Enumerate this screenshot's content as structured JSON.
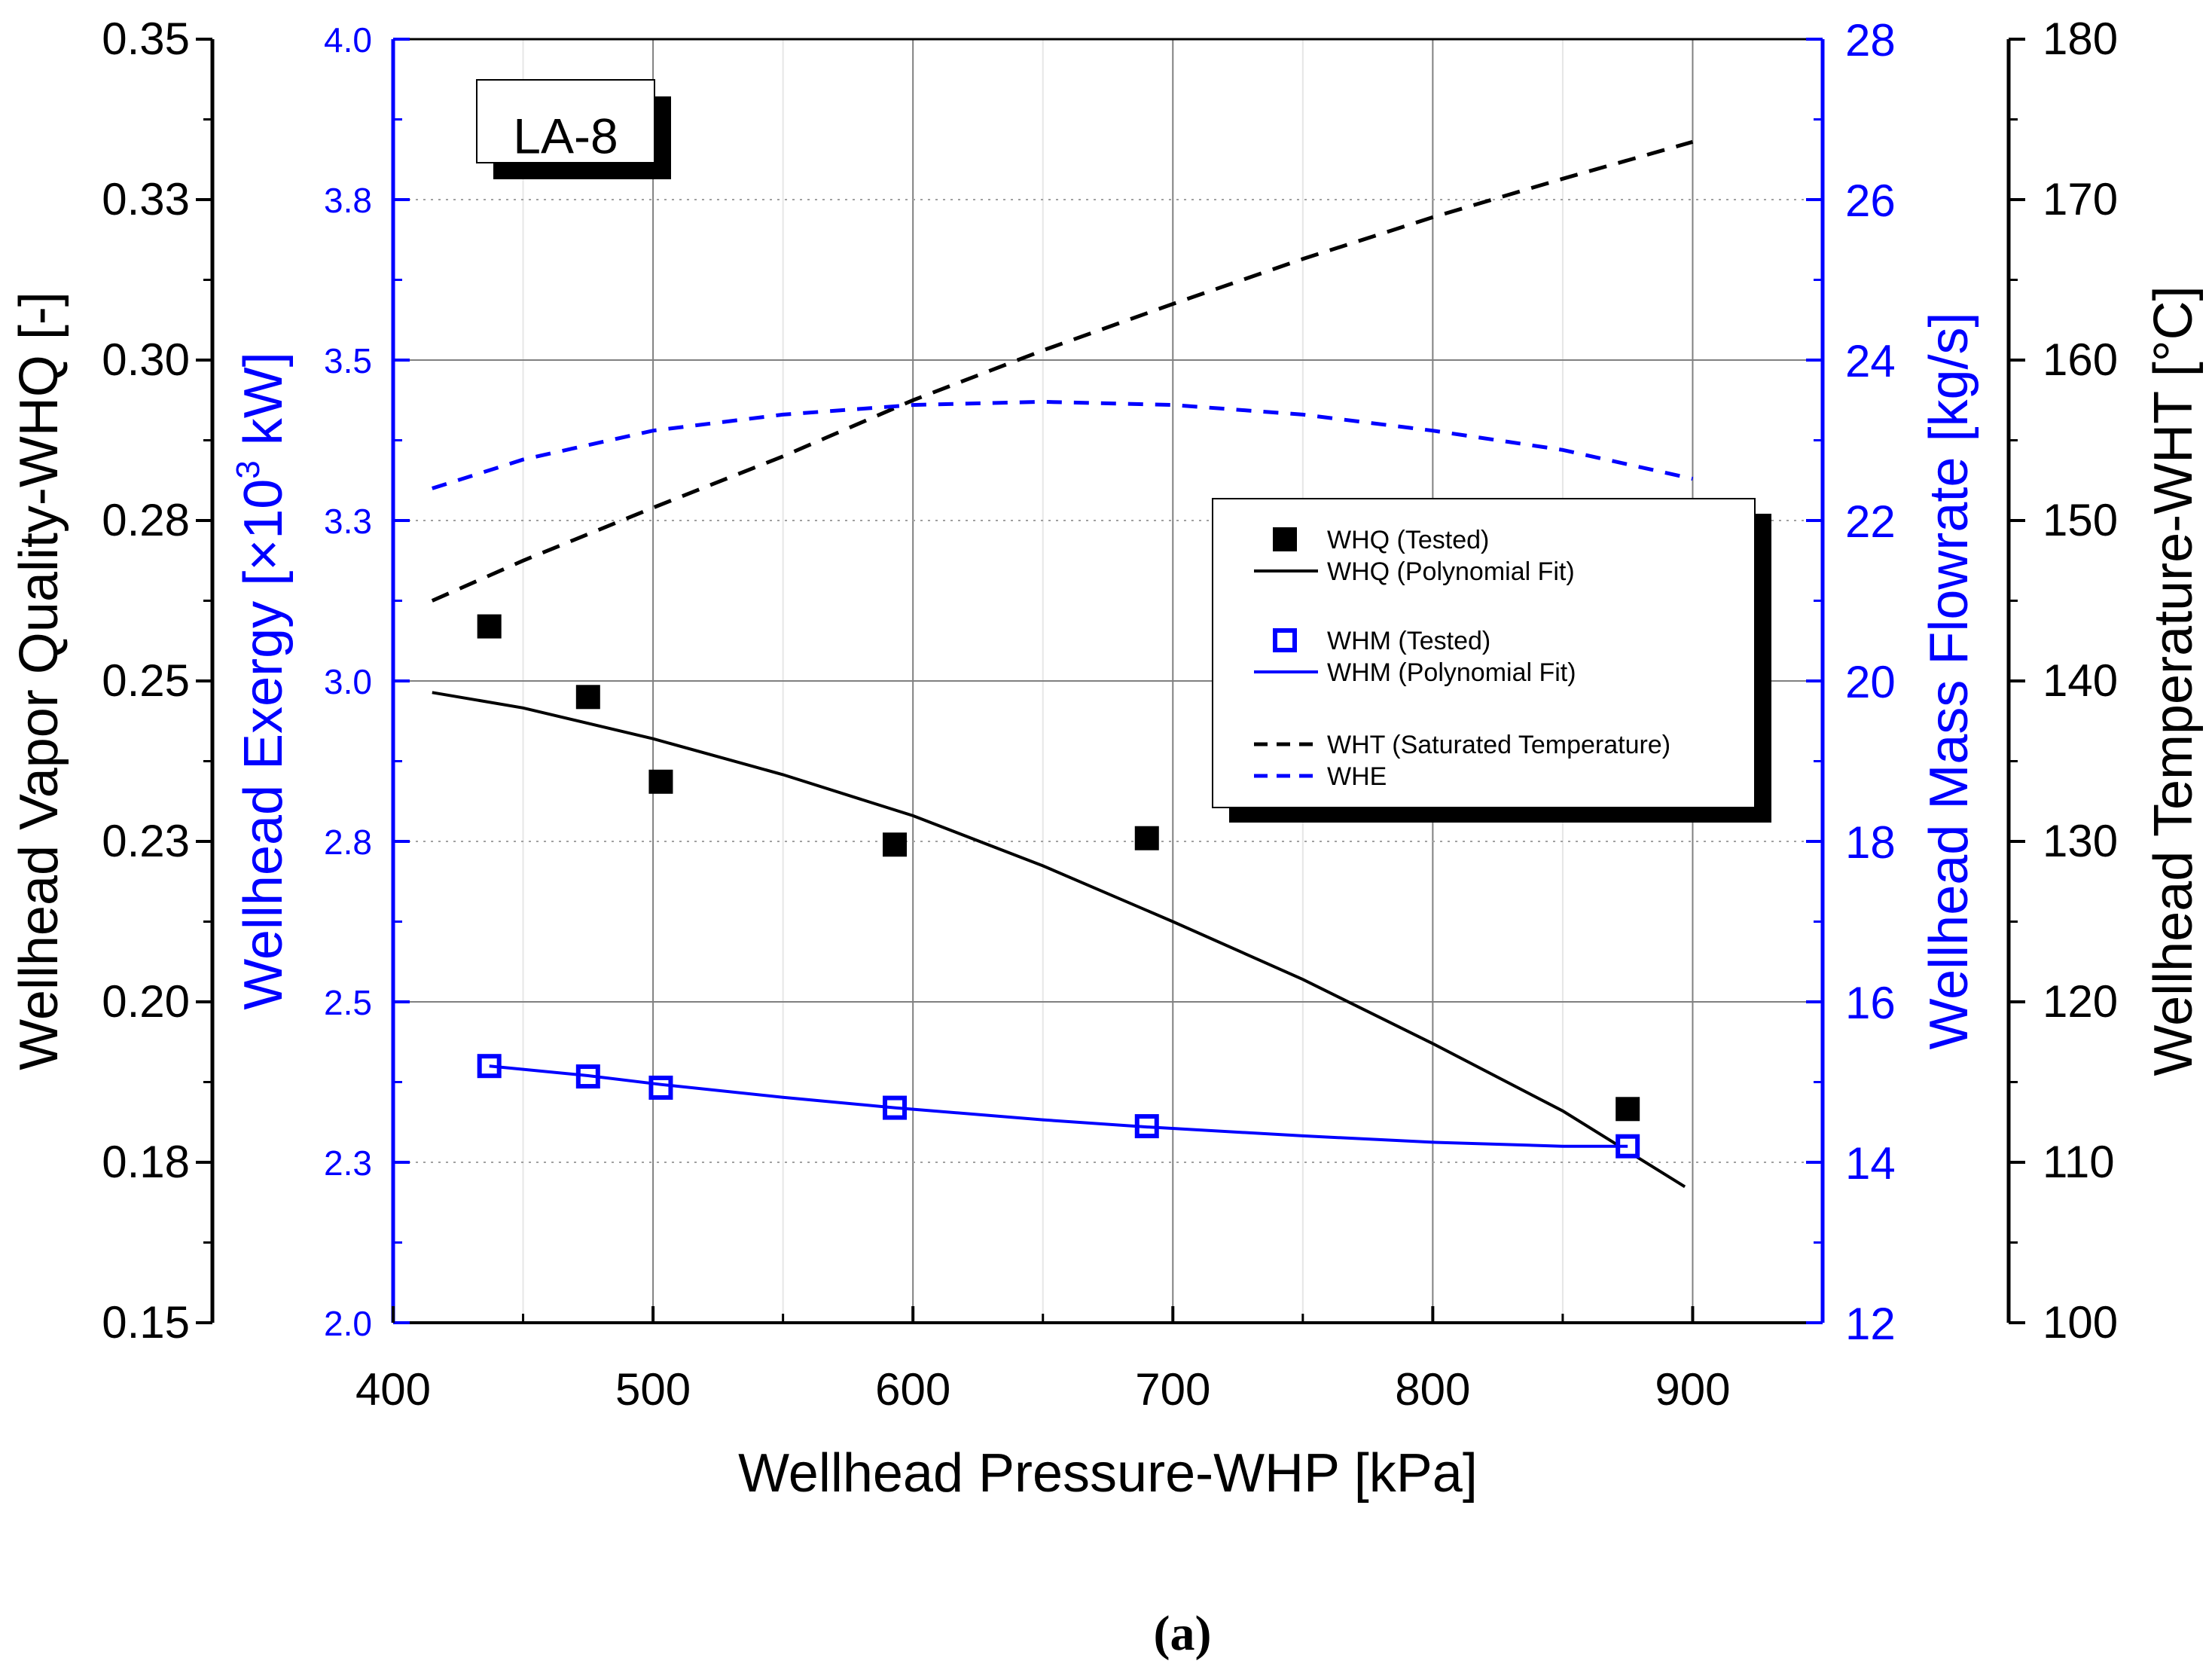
{
  "chart_data": {
    "type": "scatter",
    "plot_label": "LA-8",
    "figure_caption": "(a)",
    "xlabel": "Wellhead Pressure-WHP [kPa]",
    "xlim": [
      400,
      950
    ],
    "xticks": [
      400,
      500,
      600,
      700,
      800,
      900
    ],
    "axes": {
      "left": {
        "label": "Wellhead Vapor Quality-WHQ [-]",
        "ylim": [
          0.15,
          0.35
        ],
        "ticks": [
          0.15,
          0.175,
          0.2,
          0.225,
          0.25,
          0.275,
          0.3,
          0.325,
          0.35
        ],
        "tick_labels": [
          "0.15",
          "0.18",
          "0.20",
          "0.23",
          "0.25",
          "0.28",
          "0.30",
          "0.33",
          "0.35"
        ],
        "color": "#000000"
      },
      "left_inner": {
        "label_main": "Wellhead Exergy [×10",
        "label_sup": "3",
        "label_end": " kW]",
        "ylim": [
          2.0,
          4.0
        ],
        "ticks": [
          2.0,
          2.25,
          2.5,
          2.75,
          3.0,
          3.25,
          3.5,
          3.75,
          4.0
        ],
        "tick_labels": [
          "2.0",
          "2.3",
          "2.5",
          "2.8",
          "3.0",
          "3.3",
          "3.5",
          "3.8",
          "4.0"
        ],
        "color": "#0000ff"
      },
      "right_inner": {
        "label": "Wellhead Mass Flowrate [kg/s]",
        "ylim": [
          12,
          28
        ],
        "ticks": [
          12,
          14,
          16,
          18,
          20,
          22,
          24,
          26,
          28
        ],
        "tick_labels": [
          "12",
          "14",
          "16",
          "18",
          "20",
          "22",
          "24",
          "26",
          "28"
        ],
        "color": "#0000ff"
      },
      "right_outer": {
        "label": "Wellhead Temperature-WHT [°C]",
        "ylim": [
          100,
          180
        ],
        "ticks": [
          100,
          110,
          120,
          130,
          140,
          150,
          160,
          170,
          180
        ],
        "tick_labels": [
          "100",
          "110",
          "120",
          "130",
          "140",
          "150",
          "160",
          "170",
          "180"
        ],
        "color": "#000000"
      }
    },
    "series": [
      {
        "name": "WHQ (Tested)",
        "axis": "left",
        "style": "square-filled",
        "color": "#000000",
        "x": [
          437,
          475,
          503,
          593,
          690,
          875
        ],
        "y": [
          0.2585,
          0.2475,
          0.2343,
          0.2245,
          0.2255,
          0.1833
        ]
      },
      {
        "name": "WHQ (Polynomial Fit)",
        "axis": "left",
        "style": "line-solid",
        "color": "#000000",
        "x": [
          415,
          450,
          500,
          550,
          600,
          650,
          700,
          750,
          800,
          850,
          897
        ],
        "y": [
          0.2482,
          0.2458,
          0.241,
          0.2354,
          0.229,
          0.2212,
          0.2125,
          0.2035,
          0.1935,
          0.183,
          0.1712
        ]
      },
      {
        "name": "WHM (Tested)",
        "axis": "right_inner",
        "style": "square-open",
        "color": "#0000ff",
        "x": [
          437,
          475,
          503,
          593,
          690,
          875
        ],
        "y": [
          15.2,
          15.07,
          14.93,
          14.68,
          14.45,
          14.2
        ]
      },
      {
        "name": "WHM (Polynomial Fit)",
        "axis": "right_inner",
        "style": "line-solid",
        "color": "#0000ff",
        "x": [
          437,
          475,
          503,
          550,
          593,
          650,
          690,
          750,
          800,
          850,
          875
        ],
        "y": [
          15.2,
          15.08,
          14.97,
          14.81,
          14.68,
          14.53,
          14.44,
          14.33,
          14.25,
          14.2,
          14.2
        ]
      },
      {
        "name": "WHT  (Saturated Temperature)",
        "axis": "right_outer",
        "style": "line-dashed",
        "color": "#000000",
        "x": [
          415,
          450,
          500,
          550,
          600,
          650,
          700,
          750,
          800,
          850,
          900
        ],
        "y": [
          145.0,
          147.5,
          150.8,
          154.0,
          157.5,
          160.6,
          163.5,
          166.3,
          168.9,
          171.3,
          173.6
        ]
      },
      {
        "name": "WHE",
        "axis": "left_inner",
        "style": "line-dashed",
        "color": "#0000ff",
        "x": [
          415,
          450,
          500,
          550,
          600,
          650,
          700,
          750,
          800,
          850,
          900
        ],
        "y": [
          3.3,
          3.345,
          3.39,
          3.415,
          3.43,
          3.435,
          3.43,
          3.415,
          3.39,
          3.36,
          3.315
        ]
      }
    ],
    "legend": {
      "position": "right-middle",
      "entries": [
        "WHQ (Tested)",
        "WHQ (Polynomial Fit)",
        "WHM (Tested)",
        "WHM (Polynomial Fit)",
        "WHT  (Saturated Temperature)",
        "WHE"
      ]
    }
  }
}
